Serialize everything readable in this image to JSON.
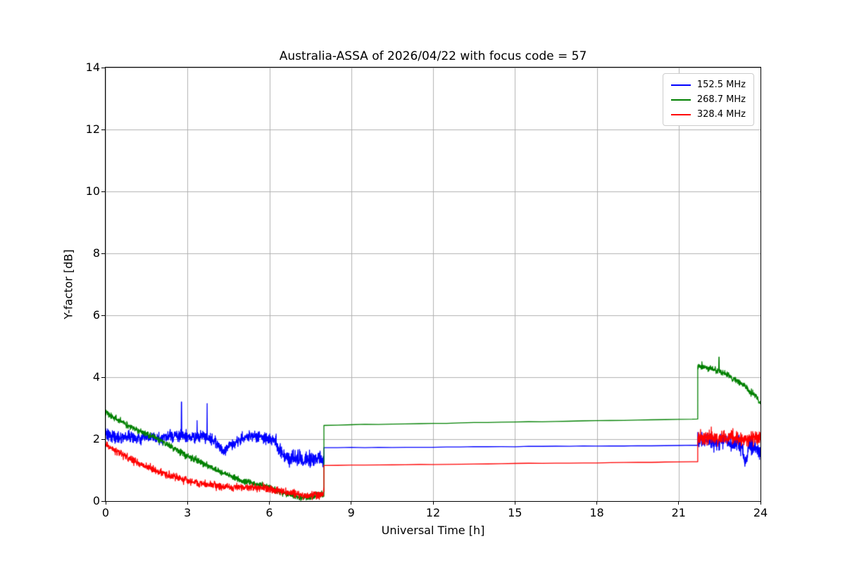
{
  "chart_data": {
    "type": "line",
    "title": "Australia-ASSA of 2026/04/22 with focus code = 57",
    "xlabel": "Universal Time [h]",
    "ylabel": "Y-factor [dB]",
    "xlim": [
      0,
      24
    ],
    "ylim": [
      0,
      14
    ],
    "xticks": [
      0,
      3,
      6,
      9,
      12,
      15,
      18,
      21,
      24
    ],
    "yticks": [
      0,
      2,
      4,
      6,
      8,
      10,
      12,
      14
    ],
    "grid": true,
    "grid_color": "#b0b0b0",
    "legend": {
      "position": "upper right"
    },
    "series": [
      {
        "name": "152.5 MHz",
        "color": "#0000ff",
        "segments": [
          {
            "noise": 0.09,
            "step": 0.008,
            "points": [
              [
                0,
                2.2
              ],
              [
                0.4,
                2.05
              ],
              [
                0.8,
                2.1
              ],
              [
                1.2,
                2.0
              ],
              [
                1.6,
                2.05
              ],
              [
                2.0,
                2.0
              ],
              [
                2.4,
                2.1
              ],
              [
                2.8,
                2.1
              ],
              [
                3.2,
                2.05
              ],
              [
                3.6,
                2.1
              ],
              [
                4.0,
                1.95
              ],
              [
                4.3,
                1.6
              ],
              [
                4.5,
                1.75
              ],
              [
                4.8,
                1.95
              ],
              [
                5.1,
                2.05
              ],
              [
                5.4,
                2.1
              ],
              [
                5.7,
                2.05
              ],
              [
                6.0,
                2.0
              ],
              [
                6.2,
                1.95
              ]
            ],
            "spikes": [
              [
                2.78,
                3.2
              ],
              [
                3.35,
                2.6
              ],
              [
                3.72,
                3.15
              ]
            ]
          },
          {
            "noise": 0.13,
            "step": 0.008,
            "points": [
              [
                6.2,
                1.95
              ],
              [
                6.4,
                1.6
              ],
              [
                6.7,
                1.35
              ],
              [
                7.0,
                1.4
              ],
              [
                7.3,
                1.25
              ],
              [
                7.6,
                1.4
              ],
              [
                8.0,
                1.3
              ]
            ]
          },
          {
            "noise": 0.004,
            "step": 0.5,
            "points": [
              [
                8.0,
                1.72
              ],
              [
                21.7,
                1.8
              ]
            ]
          },
          {
            "noise": 0.13,
            "step": 0.008,
            "points": [
              [
                21.7,
                1.95
              ],
              [
                22.0,
                2.0
              ],
              [
                22.4,
                1.9
              ],
              [
                22.7,
                2.0
              ],
              [
                23.0,
                1.8
              ],
              [
                23.2,
                1.9
              ],
              [
                23.45,
                1.3
              ],
              [
                23.6,
                1.85
              ],
              [
                23.8,
                1.75
              ],
              [
                24,
                1.55
              ]
            ]
          }
        ]
      },
      {
        "name": "268.7 MHz",
        "color": "#008000",
        "segments": [
          {
            "noise": 0.05,
            "step": 0.008,
            "points": [
              [
                0,
                2.85
              ],
              [
                0.3,
                2.7
              ],
              [
                0.6,
                2.55
              ],
              [
                1.0,
                2.35
              ],
              [
                1.4,
                2.2
              ],
              [
                1.8,
                2.05
              ],
              [
                2.2,
                1.85
              ],
              [
                2.6,
                1.65
              ],
              [
                3.0,
                1.45
              ],
              [
                3.4,
                1.3
              ],
              [
                3.8,
                1.1
              ],
              [
                4.2,
                0.95
              ],
              [
                4.6,
                0.8
              ],
              [
                5.0,
                0.65
              ],
              [
                5.4,
                0.55
              ],
              [
                5.8,
                0.5
              ],
              [
                6.2,
                0.38
              ],
              [
                6.6,
                0.25
              ],
              [
                7.0,
                0.13
              ],
              [
                7.4,
                0.1
              ],
              [
                7.7,
                0.17
              ],
              [
                8.0,
                0.2
              ]
            ]
          },
          {
            "noise": 0.004,
            "step": 0.5,
            "points": [
              [
                8.0,
                2.45
              ],
              [
                21.7,
                2.65
              ]
            ]
          },
          {
            "noise": 0.05,
            "step": 0.008,
            "points": [
              [
                21.7,
                4.35
              ],
              [
                22.0,
                4.32
              ],
              [
                22.4,
                4.22
              ],
              [
                22.7,
                4.1
              ],
              [
                23.0,
                3.95
              ],
              [
                23.3,
                3.8
              ],
              [
                23.6,
                3.55
              ],
              [
                23.8,
                3.4
              ],
              [
                24,
                3.15
              ]
            ],
            "spikes": [
              [
                21.85,
                4.5
              ],
              [
                22.48,
                4.65
              ]
            ]
          }
        ]
      },
      {
        "name": "328.4 MHz",
        "color": "#ff0000",
        "segments": [
          {
            "noise": 0.06,
            "step": 0.008,
            "points": [
              [
                0,
                1.85
              ],
              [
                0.3,
                1.65
              ],
              [
                0.6,
                1.5
              ],
              [
                1.0,
                1.32
              ],
              [
                1.4,
                1.15
              ],
              [
                1.8,
                1.0
              ],
              [
                2.2,
                0.88
              ],
              [
                2.6,
                0.76
              ],
              [
                3.0,
                0.66
              ],
              [
                3.4,
                0.58
              ],
              [
                3.8,
                0.52
              ],
              [
                4.2,
                0.48
              ],
              [
                4.6,
                0.45
              ],
              [
                5.0,
                0.43
              ],
              [
                5.4,
                0.45
              ],
              [
                5.8,
                0.42
              ],
              [
                6.2,
                0.36
              ],
              [
                6.6,
                0.28
              ],
              [
                7.0,
                0.22
              ],
              [
                7.4,
                0.17
              ],
              [
                7.7,
                0.2
              ],
              [
                8.0,
                0.27
              ]
            ]
          },
          {
            "noise": 0.003,
            "step": 0.5,
            "points": [
              [
                8.0,
                1.15
              ],
              [
                21.7,
                1.27
              ]
            ]
          },
          {
            "noise": 0.12,
            "step": 0.008,
            "points": [
              [
                21.7,
                2.05
              ],
              [
                22.0,
                2.1
              ],
              [
                22.3,
                2.05
              ],
              [
                22.6,
                2.0
              ],
              [
                23.0,
                2.05
              ],
              [
                23.4,
                1.95
              ],
              [
                23.7,
                2.05
              ],
              [
                24,
                1.95
              ]
            ]
          }
        ]
      }
    ]
  }
}
